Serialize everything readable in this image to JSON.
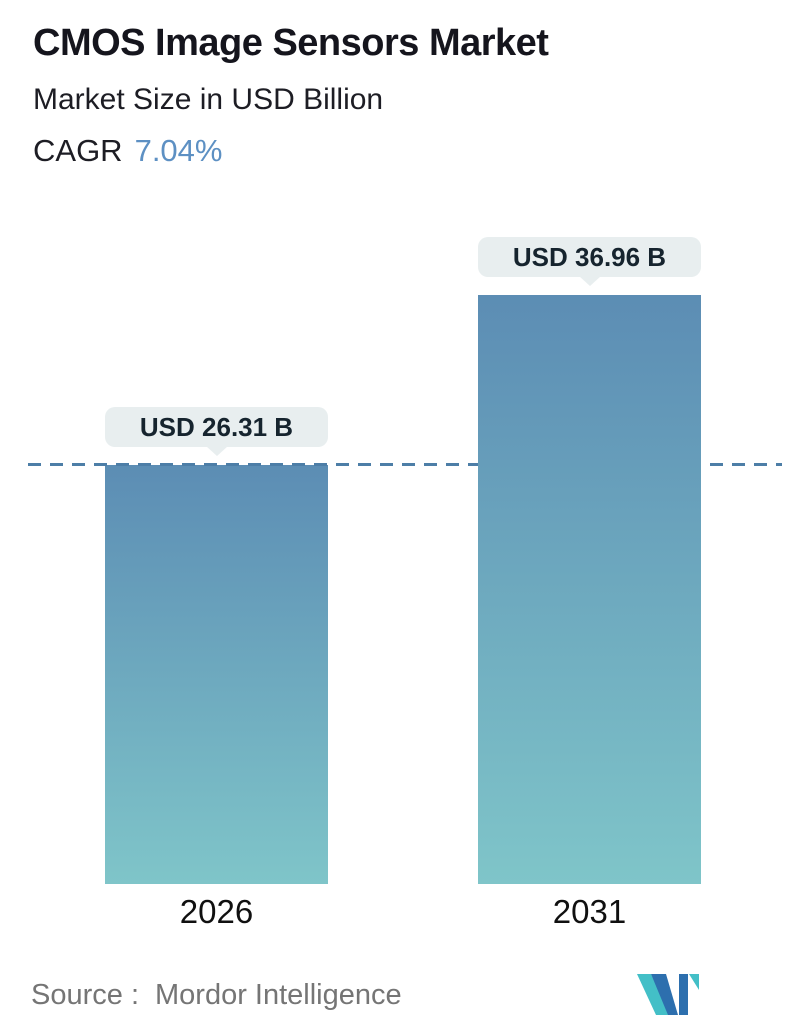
{
  "header": {
    "title": "CMOS Image Sensors Market",
    "subtitle": "Market Size in USD Billion",
    "cagr_label": "CAGR",
    "cagr_value": "7.04%"
  },
  "chart_data": {
    "type": "bar",
    "title": "CMOS Image Sensors Market",
    "ylabel": "Market Size in USD Billion",
    "categories": [
      "2026",
      "2031"
    ],
    "values": [
      26.31,
      36.96
    ],
    "value_labels": [
      "USD 26.31 B",
      "USD 36.96 B"
    ],
    "unit": "USD Billion",
    "cagr_percent": 7.04,
    "ylim": [
      0,
      36.96
    ],
    "grid": "off",
    "legend": "none",
    "annotations": [
      "horizontal dashed reference line at 26.31 (top of 2026 bar)"
    ],
    "bar_gradient_top": "#5c8db4",
    "bar_gradient_bottom": "#7fc5c9",
    "dashed_line_color": "#4d7ea7"
  },
  "footer": {
    "source_label": "Source :",
    "source_name": "Mordor Intelligence",
    "logo": "mordor-intelligence-logo"
  },
  "colors": {
    "title_text": "#15151d",
    "cagr_blue": "#5d90c3",
    "tooltip_bg": "#e8eeef",
    "tooltip_text": "#16242e",
    "axis_label": "#101010",
    "source_text": "#757575",
    "logo_teal": "#43bfc7",
    "logo_blue": "#2d6fae"
  }
}
